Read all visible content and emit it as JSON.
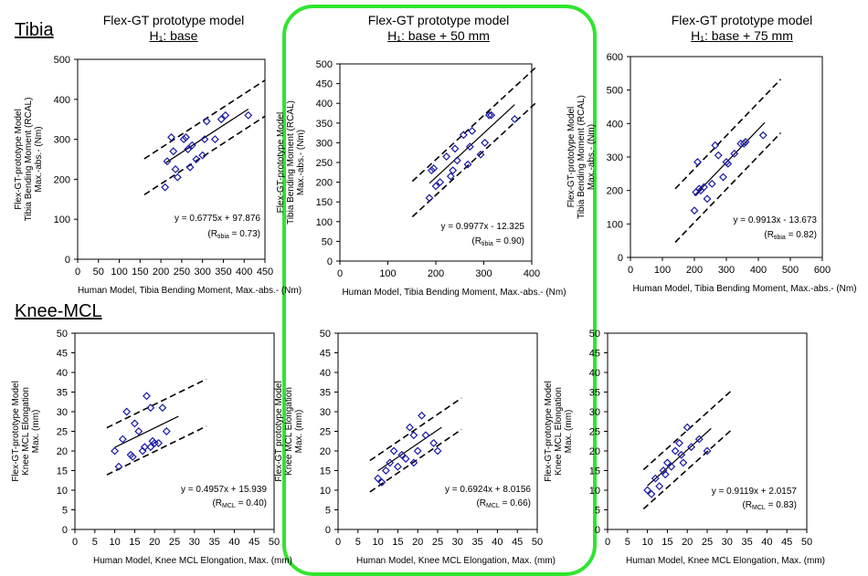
{
  "columns": [
    {
      "title": "Flex-GT prototype model",
      "subtitle": "H₁: base"
    },
    {
      "title": "Flex-GT prototype model",
      "subtitle": "H₁: base + 50 mm"
    },
    {
      "title": "Flex-GT prototype model",
      "subtitle": "H₁: base + 75 mm"
    }
  ],
  "sections": {
    "tibia": "Tibia",
    "mcl": "Knee-MCL"
  },
  "colors": {
    "marker": "#1a1aa6",
    "highlight": "#2fe52f",
    "axis": "#000000"
  },
  "chart_data": [
    {
      "type": "scatter",
      "row": "tibia",
      "col": 0,
      "xlabel": "Human Model, Tibia Bending Moment, Max.-abs.- (Nm)",
      "ylabel": [
        "Flex-GT-prototype Model",
        "Tibia Bending Moment (RCAL)",
        "Max.-abs.- (Nm)"
      ],
      "xlim": [
        0,
        450
      ],
      "ylim": [
        0,
        500
      ],
      "xticks": [
        "0",
        "50",
        "100",
        "150",
        "200",
        "250",
        "300",
        "350",
        "400",
        "450"
      ],
      "yticks": [
        "0",
        "100",
        "200",
        "300",
        "400",
        "500"
      ],
      "equation": "y = 0.6775x + 97.876",
      "r_label": "(R",
      "r_sub": "tibia",
      "r_value": " = 0.73)",
      "slope": 0.6775,
      "intercept": 97.876,
      "fit_x": [
        210,
        410
      ],
      "band_x": [
        160,
        450
      ],
      "band_offset": 45,
      "points": [
        [
          210,
          180
        ],
        [
          215,
          245
        ],
        [
          225,
          305
        ],
        [
          230,
          270
        ],
        [
          235,
          225
        ],
        [
          240,
          205
        ],
        [
          255,
          300
        ],
        [
          260,
          305
        ],
        [
          265,
          275
        ],
        [
          270,
          230
        ],
        [
          275,
          285
        ],
        [
          285,
          250
        ],
        [
          300,
          260
        ],
        [
          305,
          300
        ],
        [
          310,
          345
        ],
        [
          330,
          300
        ],
        [
          345,
          350
        ],
        [
          355,
          360
        ],
        [
          410,
          360
        ]
      ]
    },
    {
      "type": "scatter",
      "row": "tibia",
      "col": 1,
      "xlabel": "Human Model, Tibia Bending Moment, Max.-abs.- (Nm)",
      "ylabel": [
        "Flex-GT-prototype Model",
        "Tibia Bending Moment (RCAL)",
        "Max.-abs.- (Nm)"
      ],
      "xlim": [
        0,
        450
      ],
      "ylim": [
        0,
        500
      ],
      "xticks": [
        "0",
        "100",
        "200",
        "300",
        "400"
      ],
      "yticks": [
        "0",
        "50",
        "100",
        "150",
        "200",
        "250",
        "300",
        "350",
        "400",
        "450",
        "500"
      ],
      "equation": "y = 0.9977x - 12.325",
      "r_label": "(R",
      "r_sub": "tibia",
      "r_value": " = 0.90)",
      "slope": 0.9977,
      "intercept": -12.325,
      "fit_x": [
        210,
        410
      ],
      "band_x": [
        170,
        460
      ],
      "band_offset": 45,
      "points": [
        [
          210,
          160
        ],
        [
          215,
          230
        ],
        [
          220,
          235
        ],
        [
          225,
          190
        ],
        [
          235,
          200
        ],
        [
          250,
          265
        ],
        [
          260,
          215
        ],
        [
          265,
          230
        ],
        [
          270,
          285
        ],
        [
          275,
          255
        ],
        [
          290,
          320
        ],
        [
          300,
          245
        ],
        [
          305,
          290
        ],
        [
          310,
          330
        ],
        [
          330,
          270
        ],
        [
          340,
          300
        ],
        [
          350,
          370
        ],
        [
          355,
          370
        ],
        [
          410,
          360
        ]
      ]
    },
    {
      "type": "scatter",
      "row": "tibia",
      "col": 2,
      "xlabel": "Human Model, Tibia Bending Moment, Max.-abs.- (Nm)",
      "ylabel": [
        "Flex-GT-prototype Model",
        "Tibia Bending Moment (RCAL)",
        "Max.-abs.- (Nm)"
      ],
      "xlim": [
        0,
        600
      ],
      "ylim": [
        0,
        600
      ],
      "xticks": [
        "0",
        "100",
        "200",
        "300",
        "400",
        "500",
        "600"
      ],
      "yticks": [
        "0",
        "100",
        "200",
        "300",
        "400",
        "500",
        "600"
      ],
      "equation": "y = 0.9913x - 13.673",
      "r_label": "(R",
      "r_sub": "tibia",
      "r_value": " = 0.82)",
      "slope": 0.9913,
      "intercept": -13.673,
      "fit_x": [
        200,
        420
      ],
      "band_x": [
        140,
        470
      ],
      "band_offset": 80,
      "points": [
        [
          200,
          140
        ],
        [
          205,
          195
        ],
        [
          210,
          285
        ],
        [
          215,
          205
        ],
        [
          220,
          200
        ],
        [
          230,
          210
        ],
        [
          240,
          175
        ],
        [
          255,
          220
        ],
        [
          265,
          335
        ],
        [
          275,
          305
        ],
        [
          290,
          240
        ],
        [
          300,
          285
        ],
        [
          305,
          280
        ],
        [
          325,
          310
        ],
        [
          345,
          340
        ],
        [
          355,
          340
        ],
        [
          360,
          345
        ],
        [
          415,
          365
        ]
      ]
    },
    {
      "type": "scatter",
      "row": "mcl",
      "col": 0,
      "xlabel": "Human Model, Knee MCL Elongation, Max. (mm)",
      "ylabel": [
        "Flex-GT-prototype Model",
        "Knee MCL Elongation",
        "Max. (mm)"
      ],
      "xlim": [
        0,
        50
      ],
      "ylim": [
        0,
        50
      ],
      "xticks": [
        "0",
        "5",
        "10",
        "15",
        "20",
        "25",
        "30",
        "35",
        "40",
        "45",
        "50"
      ],
      "yticks": [
        "0",
        "5",
        "10",
        "15",
        "20",
        "25",
        "30",
        "35",
        "40",
        "45",
        "50"
      ],
      "equation": "y = 0.4957x + 15.939",
      "r_label": "(R",
      "r_sub": "MCL",
      "r_value": " = 0.40)",
      "slope": 0.4957,
      "intercept": 15.939,
      "fit_x": [
        10,
        26
      ],
      "band_x": [
        8,
        33
      ],
      "band_offset": 6,
      "points": [
        [
          10,
          20
        ],
        [
          11,
          16
        ],
        [
          12,
          23
        ],
        [
          13,
          30
        ],
        [
          14,
          19
        ],
        [
          14.5,
          18.5
        ],
        [
          15,
          27
        ],
        [
          16,
          25
        ],
        [
          17,
          20
        ],
        [
          17.5,
          21
        ],
        [
          18,
          34
        ],
        [
          19,
          21
        ],
        [
          19,
          31
        ],
        [
          20,
          22
        ],
        [
          21,
          22
        ],
        [
          22,
          31
        ],
        [
          23,
          25
        ],
        [
          19.5,
          22.5
        ]
      ]
    },
    {
      "type": "scatter",
      "row": "mcl",
      "col": 1,
      "xlabel": "Human Model, Knee MCL Elongation, Max. (mm)",
      "ylabel": [
        "Flex-GT prototype Model",
        "Knee MCL Elongation",
        "Max. (mm)"
      ],
      "xlim": [
        0,
        50
      ],
      "ylim": [
        0,
        50
      ],
      "xticks": [
        "0",
        "5",
        "10",
        "15",
        "20",
        "25",
        "30",
        "35",
        "40",
        "45",
        "50"
      ],
      "yticks": [
        "0",
        "5",
        "10",
        "15",
        "20",
        "25",
        "30",
        "35",
        "40",
        "45",
        "50"
      ],
      "equation": "y = 0.6924x + 8.0156",
      "r_label": "(R",
      "r_sub": "MCL",
      "r_value": " = 0.66)",
      "slope": 0.6924,
      "intercept": 8.0156,
      "fit_x": [
        10,
        26
      ],
      "band_x": [
        8,
        31
      ],
      "band_offset": 4,
      "points": [
        [
          10,
          13
        ],
        [
          11,
          12
        ],
        [
          12,
          15
        ],
        [
          13,
          17
        ],
        [
          14,
          20
        ],
        [
          15,
          16
        ],
        [
          16,
          19
        ],
        [
          17,
          18
        ],
        [
          18,
          26
        ],
        [
          19,
          17
        ],
        [
          19,
          24
        ],
        [
          20,
          20
        ],
        [
          21,
          29
        ],
        [
          22,
          24
        ],
        [
          24,
          22
        ],
        [
          25,
          20
        ]
      ]
    },
    {
      "type": "scatter",
      "row": "mcl",
      "col": 2,
      "xlabel": "Human Model, Knee MCL Elongation, Max. (mm)",
      "ylabel": [
        "Flex-GT-prototype Model",
        "Knee MCL Elongation",
        "Max. (mm)"
      ],
      "xlim": [
        0,
        50
      ],
      "ylim": [
        0,
        50
      ],
      "xticks": [
        "0",
        "5",
        "10",
        "15",
        "20",
        "25",
        "30",
        "35",
        "40",
        "45",
        "50"
      ],
      "yticks": [
        "0",
        "5",
        "10",
        "15",
        "20",
        "25",
        "30",
        "35",
        "40",
        "45",
        "50"
      ],
      "equation": "y = 0.9119x + 2.0157",
      "r_label": "(R",
      "r_sub": "MCL",
      "r_value": " = 0.83)",
      "slope": 0.9119,
      "intercept": 2.0157,
      "fit_x": [
        10,
        26
      ],
      "band_x": [
        9,
        31
      ],
      "band_offset": 5,
      "points": [
        [
          10,
          10
        ],
        [
          11,
          9
        ],
        [
          12,
          13
        ],
        [
          13,
          11
        ],
        [
          14,
          15
        ],
        [
          14.5,
          14
        ],
        [
          15,
          17
        ],
        [
          16,
          16
        ],
        [
          17,
          20
        ],
        [
          18,
          22
        ],
        [
          18.5,
          19
        ],
        [
          19,
          17
        ],
        [
          20,
          26
        ],
        [
          21,
          21
        ],
        [
          23,
          23
        ],
        [
          25,
          20
        ]
      ]
    }
  ]
}
